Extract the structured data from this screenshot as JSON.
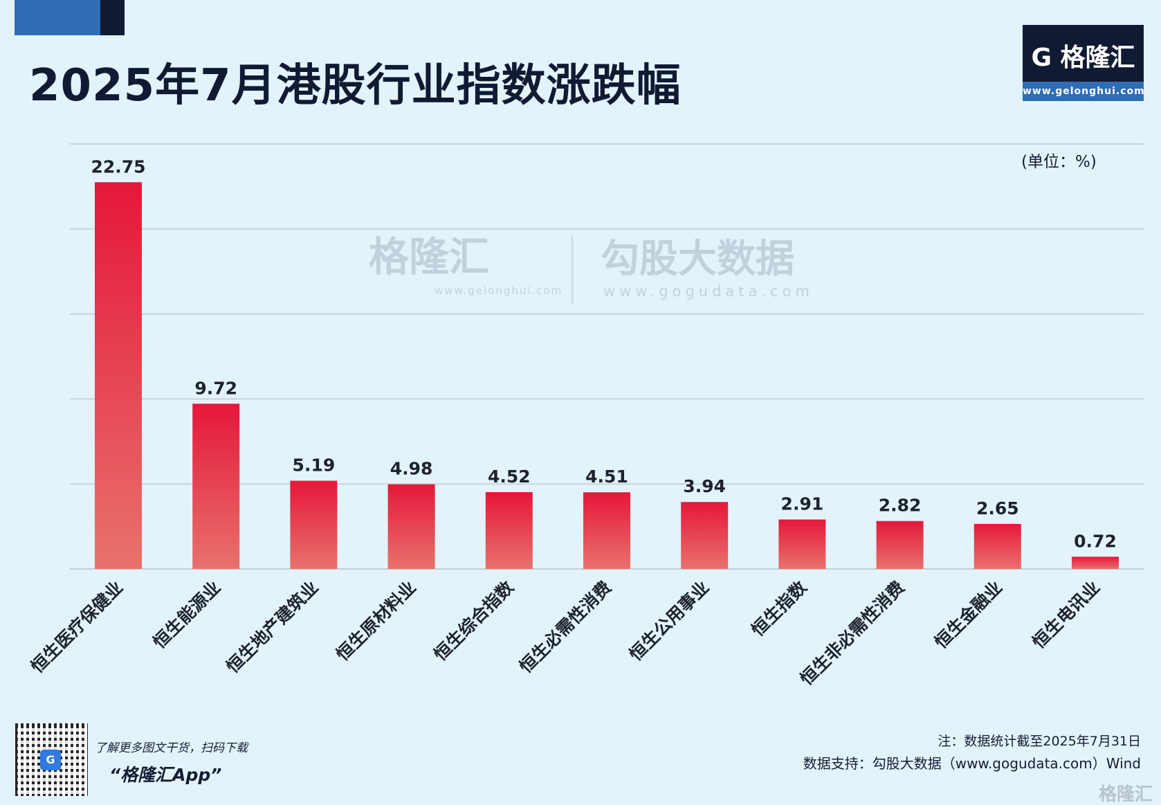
{
  "title": "2025年7月港股行业指数涨跌幅",
  "logo": {
    "name": "G 格隆汇",
    "url": "www.gelonghui.com"
  },
  "unit_label": "(单位：%)",
  "watermarks": {
    "brand": "格隆汇",
    "brand_url": "www.gelonghui.com",
    "data": "勾股大数据",
    "data_url": "www.gogudata.com"
  },
  "footer": {
    "promo_line": "了解更多图文干货，扫码下载",
    "app_name": "“格隆汇App”",
    "note": "注：数据统计截至2025年7月31日",
    "source": "数据支持：勾股大数据（www.gogudata.com）Wind",
    "corner_logo": "格隆汇"
  },
  "colors": {
    "background": "#e3f3fc",
    "bar_top": "#e5173a",
    "bar_bottom": "#e8726c",
    "title": "#111a33",
    "brand_blue": "#2f6db6"
  },
  "chart_data": {
    "type": "bar",
    "title": "2025年7月港股行业指数涨跌幅",
    "categories": [
      "恒生医疗保健业",
      "恒生能源业",
      "恒生地产建筑业",
      "恒生原材料业",
      "恒生综合指数",
      "恒生必需性消费",
      "恒生公用事业",
      "恒生指数",
      "恒生非必需性消费",
      "恒生金融业",
      "恒生电讯业"
    ],
    "values": [
      22.75,
      9.72,
      5.19,
      4.98,
      4.52,
      4.51,
      3.94,
      2.91,
      2.82,
      2.65,
      0.72
    ],
    "ylabel": "(单位：%)",
    "ylim": [
      0,
      25
    ],
    "grid": true,
    "gridline_step": 5,
    "y_tick_labels_shown": false,
    "legend": "none"
  }
}
